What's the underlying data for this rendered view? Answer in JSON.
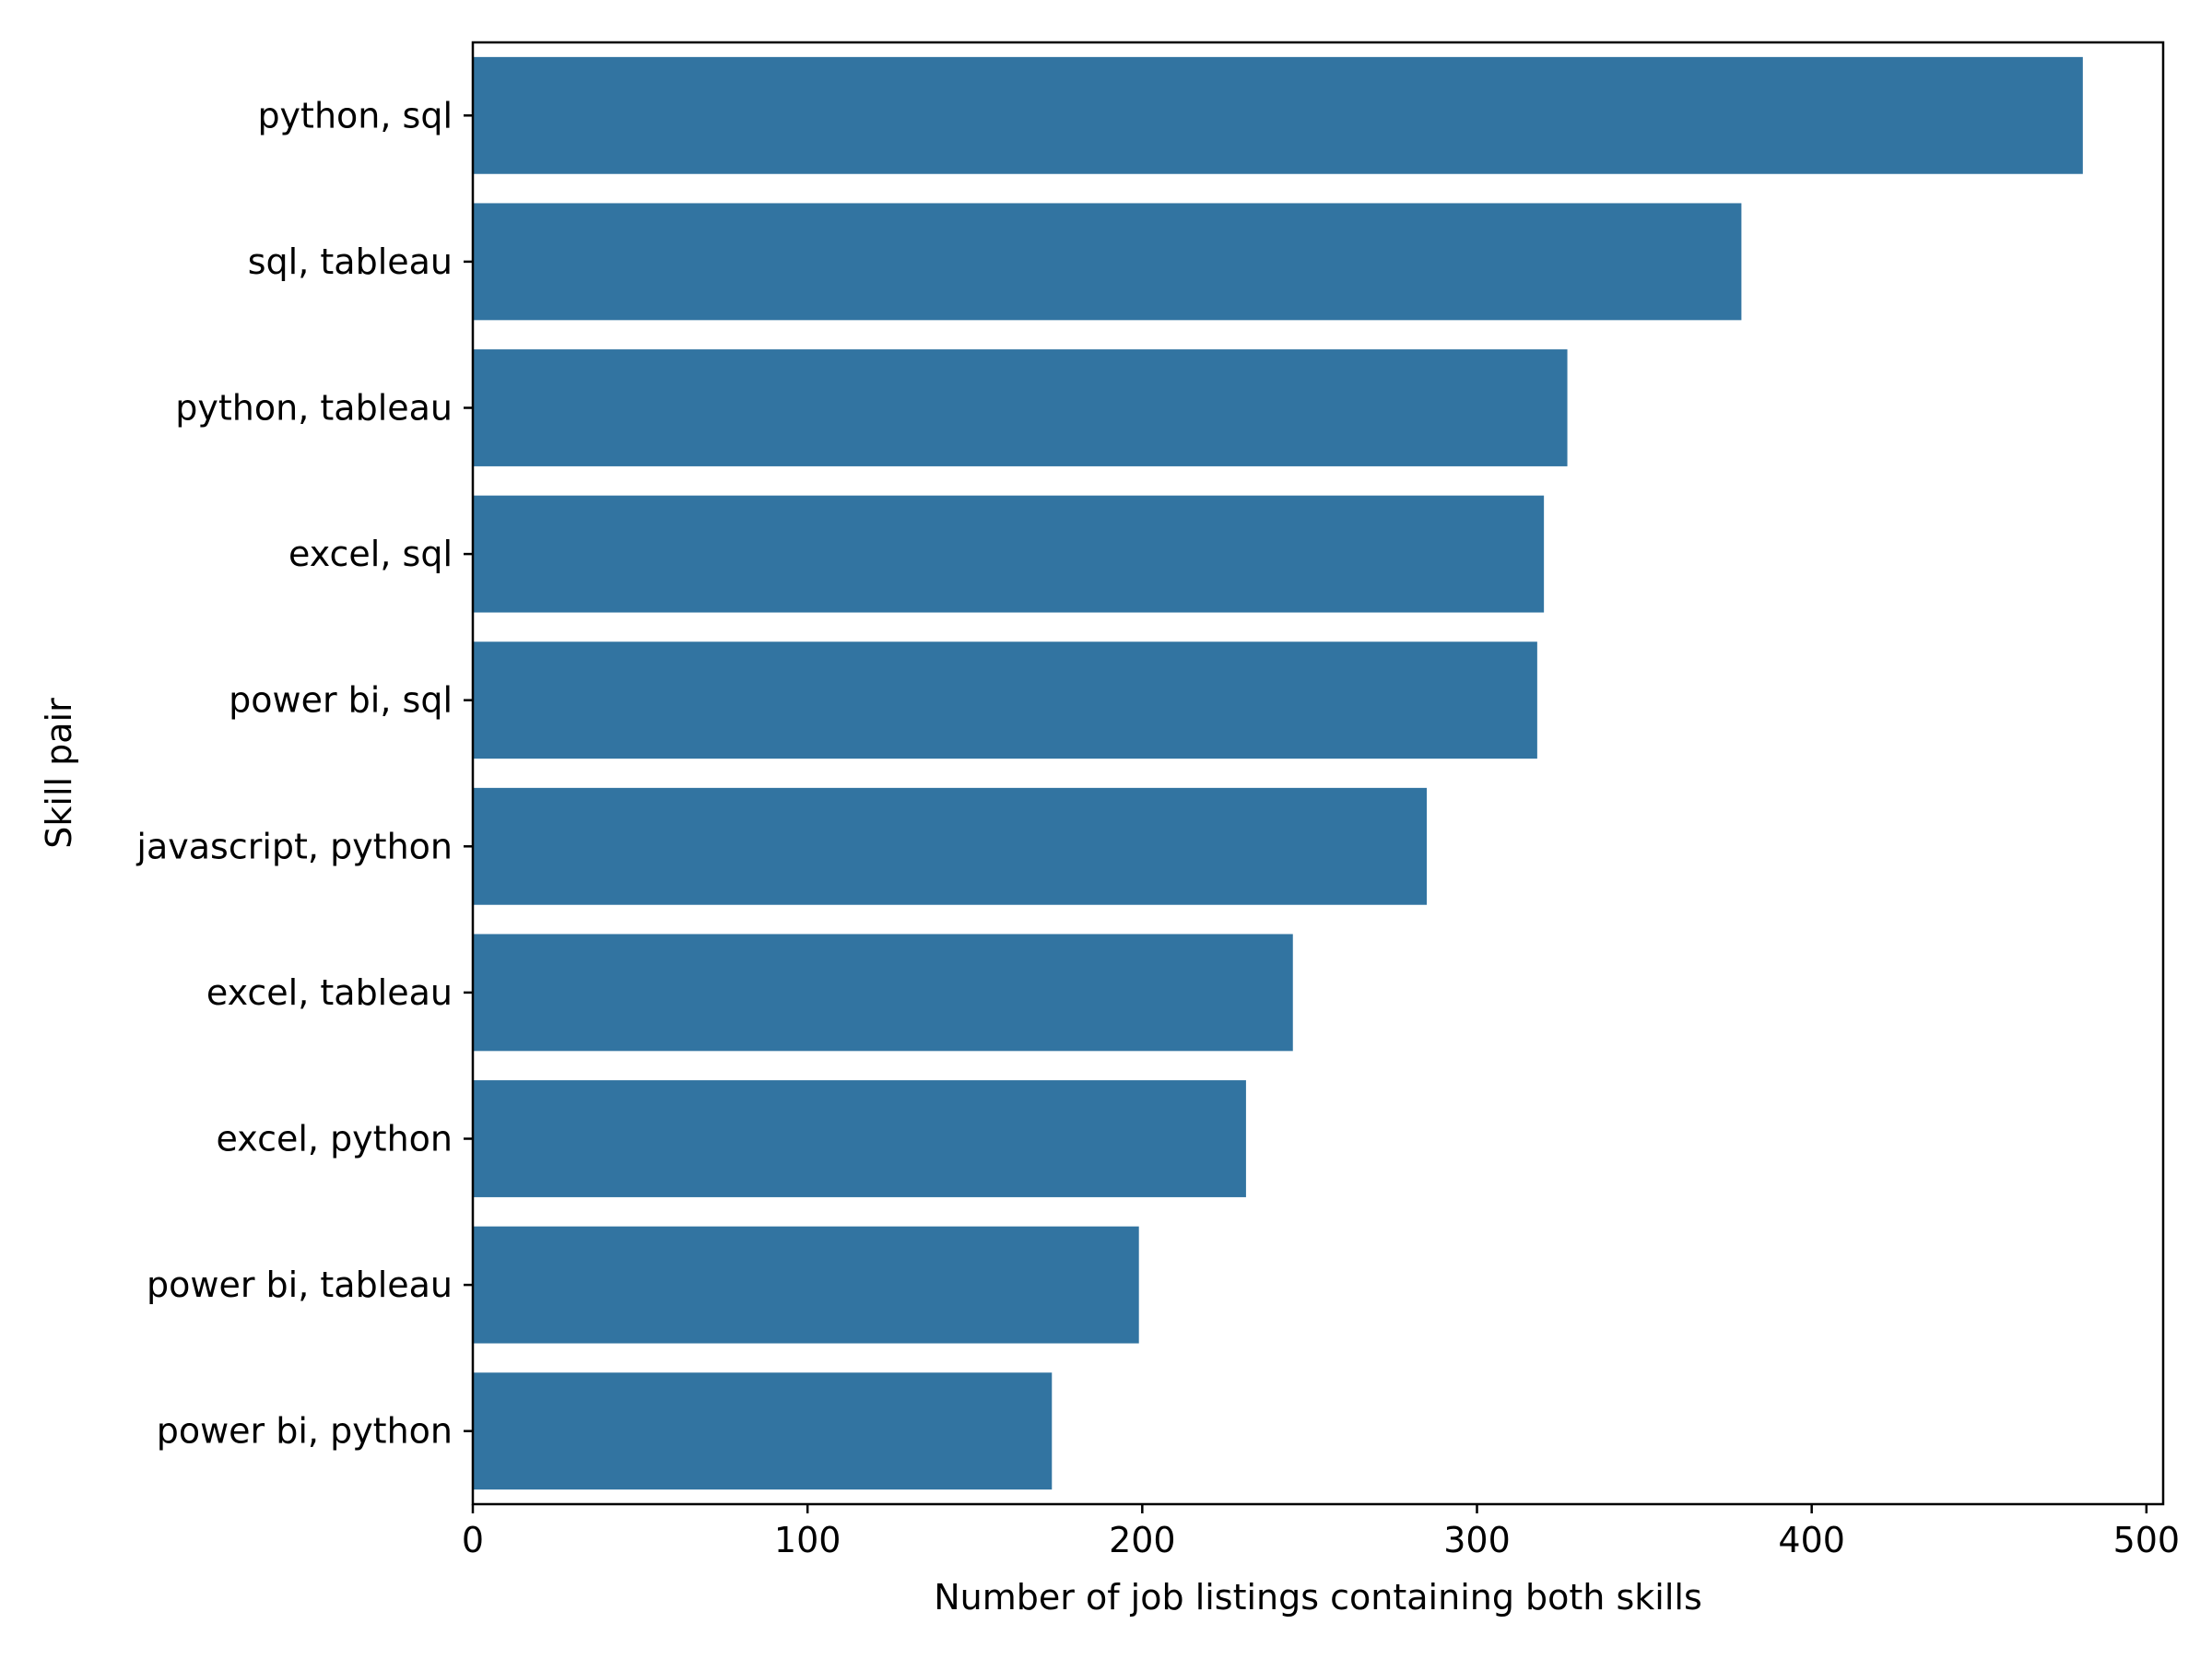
{
  "chart_data": {
    "type": "bar",
    "orientation": "horizontal",
    "title": "",
    "xlabel": "Number of job listings containing both skills",
    "ylabel": "Skill pair",
    "categories": [
      "python, sql",
      "sql, tableau",
      "python, tableau",
      "excel, sql",
      "power bi, sql",
      "javascript, python",
      "excel, tableau",
      "excel, python",
      "power bi, tableau",
      "power bi, python"
    ],
    "values": [
      481,
      379,
      327,
      320,
      318,
      285,
      245,
      231,
      199,
      173
    ],
    "xlim": [
      0,
      505
    ],
    "xticks": [
      0,
      100,
      200,
      300,
      400,
      500
    ],
    "grid": false,
    "legend": "none",
    "colors": {
      "bar": "#3274a1",
      "axis": "#000000"
    }
  }
}
